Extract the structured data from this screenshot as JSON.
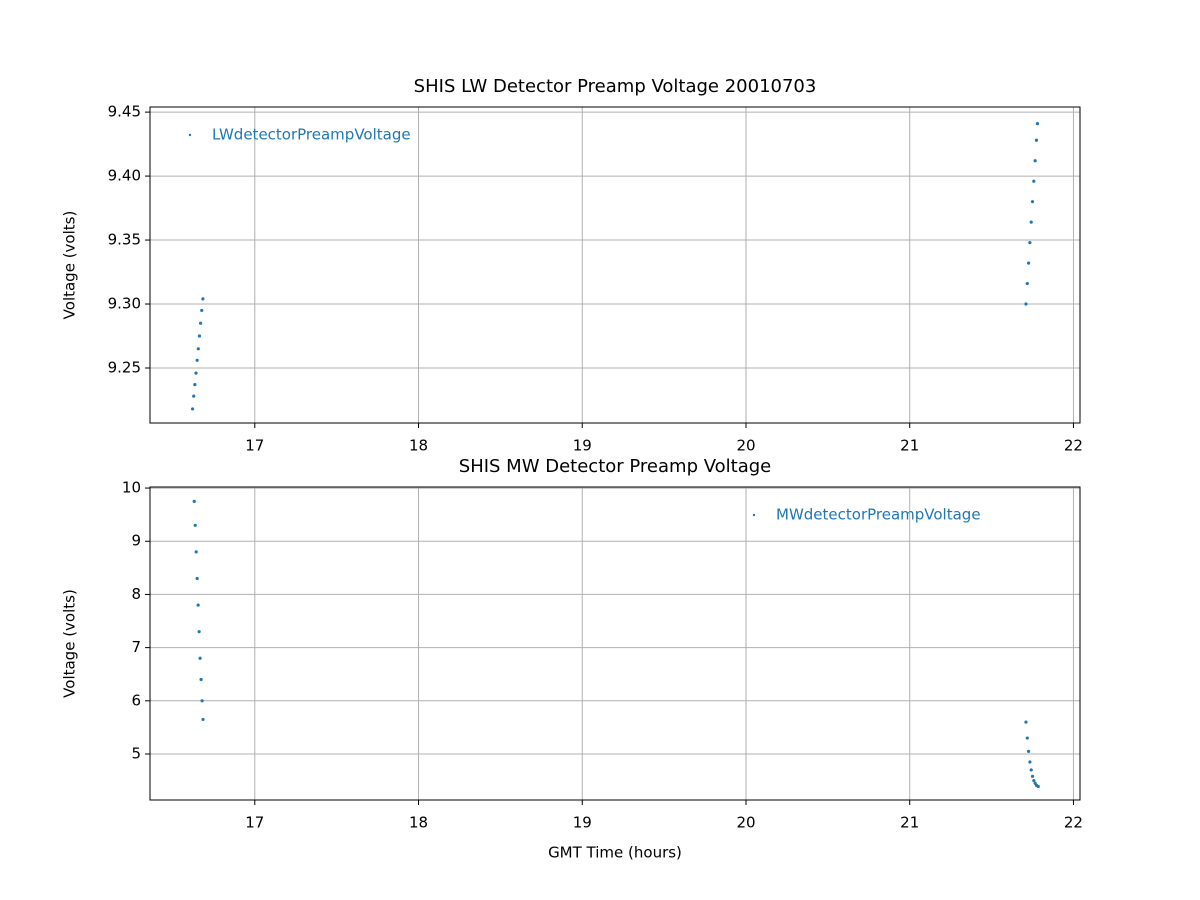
{
  "chart_data": [
    {
      "type": "scatter",
      "title": "SHIS LW Detector Preamp Voltage 20010703",
      "y_label": "Voltage (volts)",
      "xlim": [
        16.36,
        22.04
      ],
      "xticks": [
        17,
        18,
        19,
        20,
        21,
        22
      ],
      "ylim": [
        9.207,
        9.454
      ],
      "yticks": [
        9.25,
        {
          "value": 9.3,
          "label": "9.30"
        },
        9.35,
        {
          "value": 9.4,
          "label": "9.40"
        },
        9.45
      ],
      "grid": true,
      "legend": "upper left",
      "series": [
        {
          "name": "LWdetectorPreampVoltage",
          "color": "#1f77b4",
          "x": [
            16.62,
            16.627,
            16.634,
            16.641,
            16.648,
            16.655,
            16.662,
            16.669,
            16.676,
            16.683,
            21.71,
            21.718,
            21.726,
            21.734,
            21.742,
            21.75,
            21.758,
            21.766,
            21.774,
            21.78
          ],
          "values": [
            9.218,
            9.228,
            9.237,
            9.246,
            9.256,
            9.265,
            9.275,
            9.285,
            9.295,
            9.304,
            9.3,
            9.316,
            9.332,
            9.348,
            9.364,
            9.38,
            9.396,
            9.412,
            9.428,
            9.441
          ]
        }
      ]
    },
    {
      "type": "scatter",
      "title": "SHIS MW Detector Preamp Voltage",
      "x_label": "GMT Time (hours)",
      "y_label": "Voltage (volts)",
      "xlim": [
        16.36,
        22.04
      ],
      "xticks": [
        17,
        18,
        19,
        20,
        21,
        22
      ],
      "ylim": [
        4.135,
        10.02
      ],
      "yticks": [
        5,
        6,
        7,
        8,
        9,
        10
      ],
      "grid": true,
      "legend": "upper right",
      "series": [
        {
          "name": "MWdetectorPreampVoltage",
          "color": "#1f77b4",
          "x": [
            16.63,
            16.636,
            16.642,
            16.648,
            16.654,
            16.66,
            16.666,
            16.672,
            16.678,
            16.684,
            21.71,
            21.718,
            21.726,
            21.734,
            21.742,
            21.75,
            21.758,
            21.766,
            21.774,
            21.785
          ],
          "values": [
            9.75,
            9.3,
            8.8,
            8.3,
            7.8,
            7.3,
            6.8,
            6.4,
            6.0,
            5.65,
            5.6,
            5.3,
            5.05,
            4.85,
            4.7,
            4.58,
            4.5,
            4.45,
            4.41,
            4.39
          ]
        }
      ]
    }
  ]
}
